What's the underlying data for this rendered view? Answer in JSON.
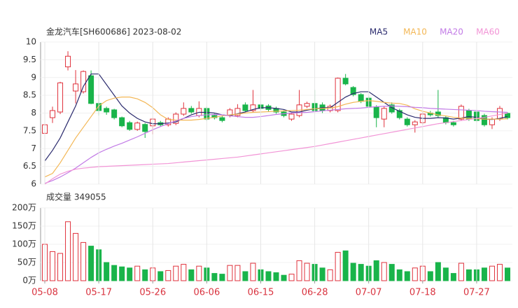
{
  "chart_data": [
    {
      "type": "candlestick",
      "title": "金龙汽车[SH600686] 2023-08-02",
      "up_color": "#e0323c",
      "down_color": "#19b44a",
      "open": [
        7.43,
        7.87,
        8.03,
        9.3,
        8.62,
        8.6,
        9.05,
        8.27,
        8.13,
        8.09,
        7.87,
        7.73,
        7.54,
        7.68,
        7.64,
        7.73,
        7.67,
        7.71,
        7.97,
        8.13,
        7.93,
        8.13,
        7.93,
        7.87,
        7.93,
        7.93,
        8.23,
        8.07,
        8.23,
        8.2,
        8.13,
        8.03,
        7.83,
        7.93,
        8.19,
        8.27,
        8.23,
        8.07,
        8.07,
        8.98,
        8.72,
        8.52,
        8.42,
        8.17,
        7.83,
        8.23,
        8.07,
        7.83,
        7.67,
        7.73,
        8.0,
        8.03,
        7.87,
        7.73,
        7.83,
        8.07,
        8.03,
        7.93,
        7.67,
        7.83,
        7.99
      ],
      "high": [
        7.7,
        8.18,
        8.88,
        9.74,
        9.21,
        9.2,
        9.2,
        8.52,
        8.18,
        8.12,
        7.9,
        7.78,
        7.76,
        7.72,
        7.86,
        7.78,
        7.88,
        8.02,
        8.3,
        8.2,
        8.33,
        8.18,
        7.98,
        7.92,
        8.14,
        8.25,
        8.3,
        8.65,
        8.28,
        8.25,
        8.18,
        8.08,
        8.0,
        8.65,
        8.32,
        8.65,
        8.3,
        8.24,
        9.0,
        9.1,
        8.76,
        8.56,
        8.47,
        8.22,
        8.18,
        8.3,
        8.12,
        7.88,
        7.8,
        8.02,
        8.06,
        8.65,
        7.92,
        7.78,
        8.24,
        8.12,
        8.08,
        7.98,
        7.88,
        8.2,
        8.02
      ],
      "low": [
        7.15,
        7.72,
        7.97,
        9.2,
        8.27,
        8.55,
        8.25,
        7.93,
        7.95,
        7.82,
        7.6,
        7.5,
        7.5,
        7.3,
        7.4,
        7.62,
        7.62,
        7.66,
        7.92,
        7.98,
        7.88,
        7.78,
        7.82,
        7.74,
        7.88,
        7.88,
        8.02,
        8.02,
        8.08,
        8.05,
        7.98,
        7.88,
        7.78,
        7.88,
        8.14,
        8.02,
        8.0,
        8.02,
        8.02,
        8.78,
        8.47,
        8.28,
        8.14,
        7.6,
        7.6,
        7.98,
        7.82,
        7.62,
        7.45,
        7.68,
        7.9,
        7.88,
        7.68,
        7.62,
        7.78,
        7.78,
        7.74,
        7.62,
        7.55,
        7.78,
        7.82
      ],
      "close": [
        7.67,
        8.07,
        8.85,
        9.6,
        8.82,
        9.17,
        8.27,
        8.07,
        8.03,
        7.87,
        7.64,
        7.54,
        7.72,
        7.48,
        7.83,
        7.67,
        7.83,
        7.97,
        8.13,
        8.03,
        8.13,
        7.83,
        7.87,
        7.79,
        8.09,
        8.13,
        8.07,
        8.23,
        8.13,
        8.1,
        8.03,
        7.93,
        7.97,
        8.23,
        8.27,
        8.07,
        8.07,
        8.19,
        8.98,
        8.82,
        8.52,
        8.33,
        8.19,
        7.87,
        8.13,
        8.03,
        7.87,
        7.67,
        7.75,
        7.97,
        7.95,
        7.93,
        7.73,
        7.67,
        8.19,
        7.83,
        7.79,
        7.67,
        7.83,
        8.13,
        7.87
      ],
      "series": [
        {
          "name": "MA5",
          "color": "#2b2b6e",
          "values": [
            6.65,
            6.95,
            7.3,
            7.75,
            8.2,
            8.75,
            9.1,
            9.1,
            8.8,
            8.5,
            8.2,
            8.0,
            7.85,
            7.75,
            7.7,
            7.7,
            7.72,
            7.75,
            7.85,
            7.95,
            8.02,
            8.02,
            8.0,
            7.95,
            7.93,
            7.98,
            8.03,
            8.1,
            8.15,
            8.15,
            8.13,
            8.1,
            8.03,
            8.03,
            8.08,
            8.12,
            8.15,
            8.15,
            8.3,
            8.45,
            8.55,
            8.6,
            8.6,
            8.45,
            8.3,
            8.15,
            8.05,
            7.95,
            7.88,
            7.85,
            7.85,
            7.87,
            7.86,
            7.83,
            7.86,
            7.9,
            7.88,
            7.83,
            7.82,
            7.85,
            7.9
          ]
        },
        {
          "name": "MA10",
          "color": "#f3b756",
          "values": [
            6.2,
            6.3,
            6.6,
            6.95,
            7.3,
            7.6,
            7.9,
            8.2,
            8.35,
            8.42,
            8.45,
            8.45,
            8.4,
            8.3,
            8.15,
            7.95,
            7.82,
            7.8,
            7.8,
            7.8,
            7.82,
            7.85,
            7.88,
            7.92,
            7.95,
            7.97,
            8.0,
            8.02,
            8.03,
            8.04,
            8.05,
            8.06,
            8.07,
            8.08,
            8.1,
            8.12,
            8.13,
            8.14,
            8.18,
            8.25,
            8.3,
            8.33,
            8.35,
            8.33,
            8.3,
            8.28,
            8.27,
            8.22,
            8.12,
            8.05,
            8.0,
            7.95,
            7.92,
            7.88,
            7.86,
            7.85,
            7.84,
            7.83,
            7.83,
            7.83,
            7.84
          ]
        },
        {
          "name": "MA20",
          "color": "#c27be6",
          "values": [
            6.02,
            6.1,
            6.2,
            6.32,
            6.45,
            6.6,
            6.75,
            6.88,
            6.98,
            7.07,
            7.15,
            7.24,
            7.33,
            7.43,
            7.53,
            7.62,
            7.7,
            7.78,
            7.85,
            7.9,
            7.93,
            7.95,
            7.96,
            7.95,
            7.92,
            7.9,
            7.88,
            7.88,
            7.9,
            7.93,
            7.96,
            7.98,
            8.0,
            8.01,
            8.02,
            8.04,
            8.06,
            8.08,
            8.1,
            8.12,
            8.13,
            8.14,
            8.16,
            8.18,
            8.19,
            8.2,
            8.19,
            8.18,
            8.16,
            8.15,
            8.13,
            8.12,
            8.11,
            8.1,
            8.09,
            8.08,
            8.07,
            8.05,
            8.04,
            8.03,
            8.02
          ]
        },
        {
          "name": "MA60",
          "color": "#f294d6",
          "values": [
            6.0,
            6.15,
            6.28,
            6.36,
            6.42,
            6.45,
            6.47,
            6.49,
            6.5,
            6.51,
            6.52,
            6.53,
            6.54,
            6.55,
            6.56,
            6.57,
            6.58,
            6.6,
            6.62,
            6.64,
            6.66,
            6.68,
            6.7,
            6.72,
            6.74,
            6.76,
            6.79,
            6.82,
            6.85,
            6.88,
            6.91,
            6.94,
            6.97,
            7.0,
            7.03,
            7.06,
            7.1,
            7.14,
            7.18,
            7.22,
            7.26,
            7.3,
            7.34,
            7.38,
            7.42,
            7.46,
            7.5,
            7.54,
            7.58,
            7.62,
            7.66,
            7.7,
            7.73,
            7.76,
            7.79,
            7.82,
            7.85,
            7.88,
            7.92,
            7.96,
            8.0
          ]
        }
      ],
      "ylim": [
        6,
        10
      ],
      "yticks": [
        6,
        6.5,
        7,
        7.5,
        8,
        8.5,
        9,
        9.5,
        10
      ],
      "grid": true
    },
    {
      "type": "bar",
      "title": "成交量 349055",
      "categories": [
        "05-08",
        null,
        null,
        null,
        null,
        null,
        null,
        "05-17",
        null,
        null,
        null,
        null,
        null,
        null,
        "05-26",
        null,
        null,
        null,
        null,
        null,
        null,
        "06-06",
        null,
        null,
        null,
        null,
        null,
        null,
        "06-15",
        null,
        null,
        null,
        null,
        null,
        null,
        "06-28",
        null,
        null,
        null,
        null,
        null,
        null,
        "07-07",
        null,
        null,
        null,
        null,
        null,
        null,
        "07-18",
        null,
        null,
        null,
        null,
        null,
        null,
        "07-27",
        null,
        null,
        null,
        null
      ],
      "values": [
        100,
        80,
        75,
        162,
        130,
        105,
        95,
        85,
        50,
        42,
        38,
        35,
        40,
        30,
        35,
        25,
        28,
        40,
        45,
        30,
        40,
        35,
        20,
        18,
        42,
        42,
        25,
        48,
        30,
        25,
        22,
        15,
        18,
        55,
        48,
        45,
        35,
        30,
        78,
        82,
        48,
        45,
        40,
        55,
        50,
        45,
        30,
        25,
        35,
        40,
        25,
        50,
        35,
        20,
        48,
        30,
        30,
        35,
        40,
        45,
        34.9055
      ],
      "ylim": [
        0,
        200
      ],
      "yticks": [
        {
          "value": 0,
          "label": "0万"
        },
        {
          "value": 50,
          "label": "50万"
        },
        {
          "value": 100,
          "label": "100万"
        },
        {
          "value": 150,
          "label": "150万"
        },
        {
          "value": 200,
          "label": "200万"
        }
      ],
      "grid": true
    }
  ]
}
